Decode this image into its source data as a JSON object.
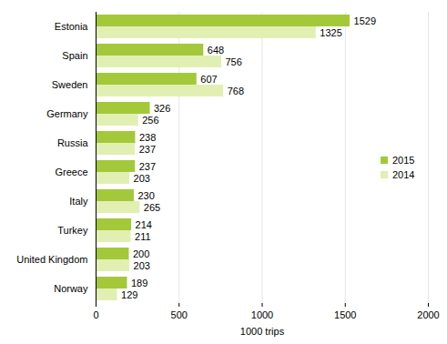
{
  "chart_data": {
    "type": "bar",
    "orientation": "horizontal",
    "categories": [
      "Estonia",
      "Spain",
      "Sweden",
      "Germany",
      "Russia",
      "Greece",
      "Italy",
      "Turkey",
      "United Kingdom",
      "Norway"
    ],
    "series": [
      {
        "name": "2015",
        "color": "#a3c93a",
        "values": [
          1529,
          648,
          607,
          326,
          238,
          237,
          230,
          214,
          200,
          189
        ]
      },
      {
        "name": "2014",
        "color": "#e2efb3",
        "values": [
          1325,
          756,
          768,
          256,
          237,
          203,
          265,
          211,
          203,
          129
        ]
      }
    ],
    "xlabel": "1000 trips",
    "xlim": [
      0,
      2000
    ],
    "xticks": [
      0,
      500,
      1000,
      1500,
      2000
    ],
    "grid": true,
    "data_labels": true,
    "legend": "right"
  }
}
